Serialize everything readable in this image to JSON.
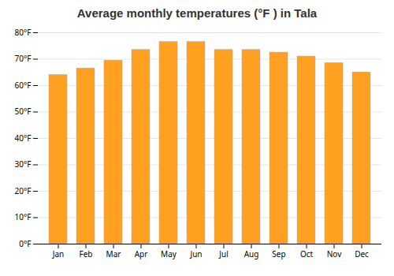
{
  "chart_data": {
    "type": "bar",
    "title": "Average monthly temperatures (°F ) in Tala",
    "categories": [
      "Jan",
      "Feb",
      "Mar",
      "Apr",
      "May",
      "Jun",
      "Jul",
      "Aug",
      "Sep",
      "Oct",
      "Nov",
      "Dec"
    ],
    "values": [
      64,
      66.5,
      69.5,
      73.5,
      76.5,
      76.5,
      73.5,
      73.5,
      72.5,
      71,
      68.5,
      65
    ],
    "color": "#FFA020",
    "ylim": [
      0,
      80
    ],
    "yticks": [
      {
        "value": 0,
        "label": "0°F"
      },
      {
        "value": 10,
        "label": "10°F"
      },
      {
        "value": 20,
        "label": "20°F"
      },
      {
        "value": 30,
        "label": "30°F"
      },
      {
        "value": 40,
        "label": "40°F"
      },
      {
        "value": 50,
        "label": "50°F"
      },
      {
        "value": 60,
        "label": "60°F"
      },
      {
        "value": 70,
        "label": "70°F"
      },
      {
        "value": 80,
        "label": "80°F"
      }
    ],
    "grid": true
  }
}
